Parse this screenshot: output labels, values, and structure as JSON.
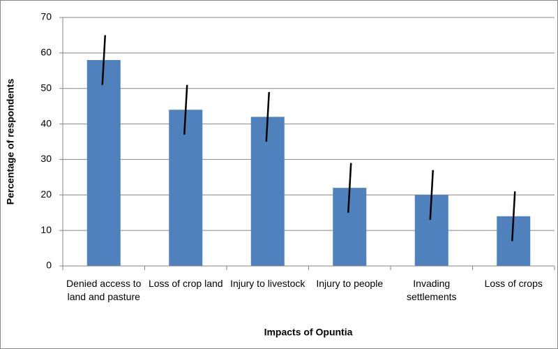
{
  "chart_data": {
    "type": "bar",
    "xlabel": "Impacts of Opuntia",
    "ylabel": "Percentage of respondents",
    "categories": [
      "Denied access to land and pasture",
      "Loss of crop land",
      "Injury to livestock",
      "Injury to people",
      "Invading settlements",
      "Loss of crops"
    ],
    "series": [
      {
        "color": "#4f81bd",
        "values": [
          58,
          44,
          42,
          22,
          20,
          14
        ],
        "errors": [
          7,
          7,
          7,
          7,
          7,
          7
        ]
      }
    ],
    "ylim": [
      0,
      70
    ],
    "yticks": [
      0,
      10,
      20,
      30,
      40,
      50,
      60,
      70
    ],
    "grid": true
  }
}
